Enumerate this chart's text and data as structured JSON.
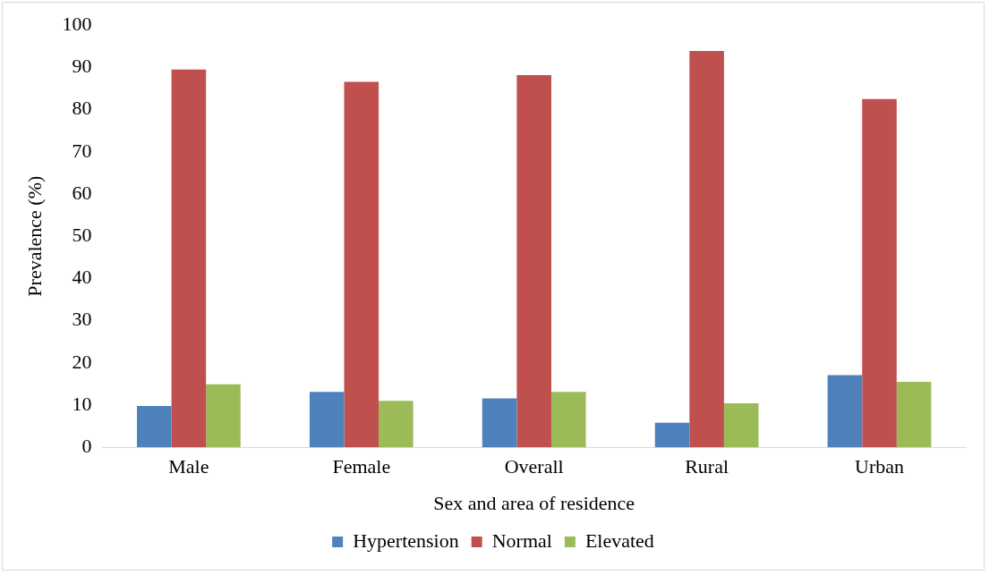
{
  "chart_data": {
    "type": "bar",
    "xlabel": "Sex and area of residence",
    "ylabel": "Prevalence (%)",
    "categories": [
      "Male",
      "Female",
      "Overall",
      "Rural",
      "Urban"
    ],
    "series": [
      {
        "name": "Hypertension",
        "color": "#4f81bd",
        "values": [
          9.8,
          13.1,
          11.6,
          5.8,
          17.1
        ]
      },
      {
        "name": "Normal",
        "color": "#c0504d",
        "values": [
          89.5,
          86.6,
          88.2,
          93.9,
          82.5
        ]
      },
      {
        "name": "Elevated",
        "color": "#9bbb59",
        "values": [
          14.9,
          11.0,
          13.1,
          10.4,
          15.5
        ]
      }
    ],
    "ylim": [
      0,
      100
    ],
    "yticks": [
      0,
      10,
      20,
      30,
      40,
      50,
      60,
      70,
      80,
      90,
      100
    ],
    "grid": false,
    "legend": "bottom"
  }
}
